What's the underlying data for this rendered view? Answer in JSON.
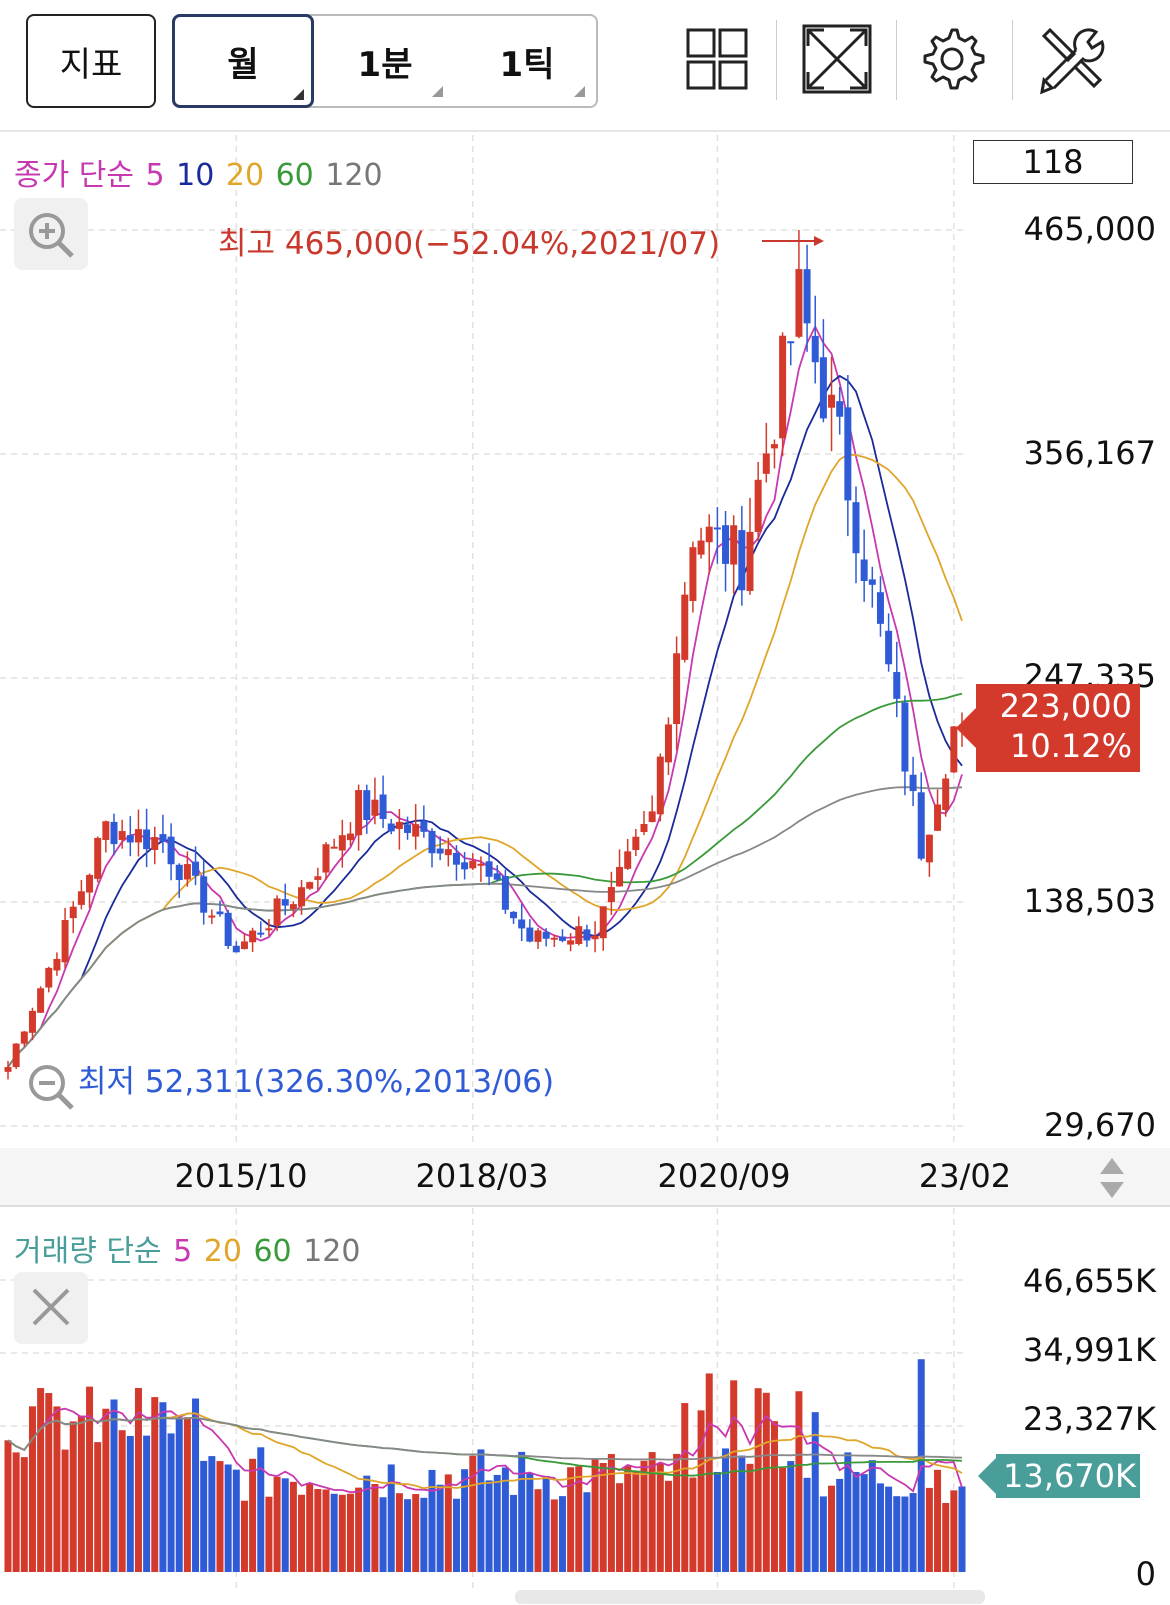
{
  "toolbar": {
    "indicator_label": "지표",
    "period_month": "월",
    "period_minute": "1분",
    "period_tick": "1틱",
    "icons": [
      "grid-layout-icon",
      "fullscreen-icon",
      "settings-gear-icon",
      "tools-icon"
    ]
  },
  "price_panel": {
    "legend": {
      "prefix": "종가 단순",
      "ma": [
        "5",
        "10",
        "20",
        "60",
        "120"
      ]
    },
    "count_box": "118",
    "price_axis": [
      "465,000",
      "356,167",
      "247,335",
      "138,503",
      "29,670"
    ],
    "current_price": "223,000",
    "current_change": "10.12%",
    "high_label": "최고 465,000(−52.04%,2021/07)",
    "low_label": "최저 52,311(326.30%,2013/06)",
    "date_axis": [
      "2015/10",
      "2018/03",
      "2020/09",
      "23/02"
    ]
  },
  "volume_panel": {
    "legend": {
      "prefix": "거래량 단순",
      "ma": [
        "5",
        "20",
        "60",
        "120"
      ]
    },
    "volume_axis": [
      "46,655K",
      "34,991K",
      "23,327K",
      "0"
    ],
    "current_volume": "13,670K"
  },
  "colors": {
    "up": "#d33a2c",
    "down": "#2f5bd6",
    "ma5": "#c838b0",
    "ma10": "#1a2a9a",
    "ma20": "#e0a62a",
    "ma60": "#3a9a3a",
    "ma120": "#888888",
    "high_label": "#c8382c",
    "low_label": "#2f5bd6"
  },
  "chart_data": {
    "type": "candlestick",
    "title": "",
    "interval": "monthly",
    "x_range": [
      "2013/06",
      "2023/03"
    ],
    "ylim": [
      29670,
      465000
    ],
    "price_ticks": [
      29670,
      138503,
      247335,
      356167,
      465000
    ],
    "volume_ticks": [
      0,
      23327000,
      34991000,
      46655000
    ],
    "series_close_approx": [
      {
        "x": "2013/06",
        "close": 60000
      },
      {
        "x": "2014/01",
        "close": 125000
      },
      {
        "x": "2014/06",
        "close": 175000
      },
      {
        "x": "2015/01",
        "close": 168000
      },
      {
        "x": "2015/10",
        "close": 115000
      },
      {
        "x": "2016/06",
        "close": 145000
      },
      {
        "x": "2017/01",
        "close": 185000
      },
      {
        "x": "2017/09",
        "close": 170000
      },
      {
        "x": "2018/03",
        "close": 160000
      },
      {
        "x": "2018/10",
        "close": 120000
      },
      {
        "x": "2019/06",
        "close": 125000
      },
      {
        "x": "2020/01",
        "close": 180000
      },
      {
        "x": "2020/06",
        "close": 320000
      },
      {
        "x": "2020/12",
        "close": 305000
      },
      {
        "x": "2021/07",
        "close": 430000
      },
      {
        "x": "2021/12",
        "close": 360000
      },
      {
        "x": "2022/06",
        "close": 250000
      },
      {
        "x": "2022/10",
        "close": 165000
      },
      {
        "x": "2023/02",
        "close": 223000
      }
    ],
    "high": {
      "value": 465000,
      "date": "2021/07"
    },
    "low": {
      "value": 52311,
      "date": "2013/06"
    },
    "last": {
      "price": 223000,
      "change_pct": 10.12,
      "volume": 13670000
    }
  }
}
